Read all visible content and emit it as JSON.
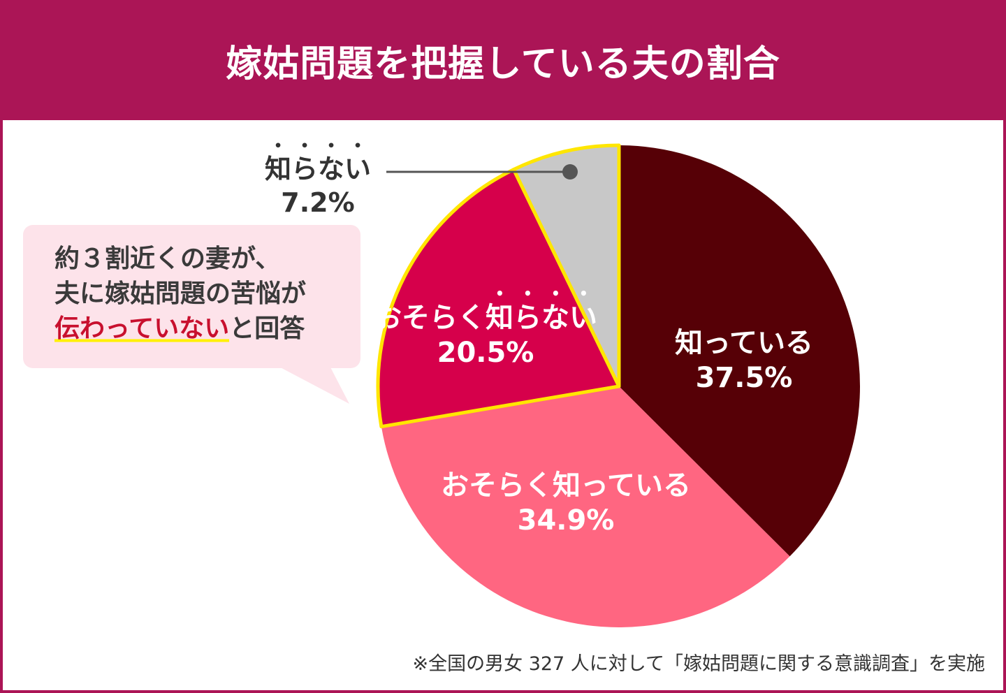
{
  "chart_data": {
    "type": "pie",
    "title": "嫁姑問題を把握している夫の割合",
    "start": "top",
    "direction": "clockwise",
    "slices": [
      {
        "label": "知っている",
        "value": 37.5,
        "display": "37.5%",
        "color": "#560006"
      },
      {
        "label": "おそらく知っている",
        "value": 34.9,
        "display": "34.9%",
        "color": "#ff6681"
      },
      {
        "label_prefix": "おそらく",
        "label": "知らない",
        "value": 20.5,
        "display": "20.5%",
        "color": "#d6004b",
        "outline": "#ffe600"
      },
      {
        "label": "知らない",
        "value": 7.2,
        "display": "7.2%",
        "color": "#c8c8c8",
        "outline": "#ffe600"
      }
    ]
  },
  "callout": {
    "line1": "約３割近くの妻が、",
    "line2": "夫に嫁姑問題の苦悩が",
    "highlight": "伝わっていない",
    "line3_rest": "と回答"
  },
  "footnote": "※全国の男女 327 人に対して「嫁姑問題に関する意識調査」を実施",
  "colors": {
    "frame": "#ab1556",
    "callout_bg": "#fde3ea",
    "highlight_text": "#c8102e",
    "underline": "#fff000"
  }
}
